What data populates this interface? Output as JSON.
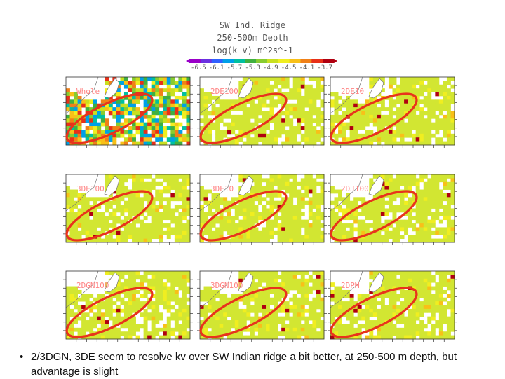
{
  "chart_data": {
    "type": "heatmap",
    "title": "SW Ind. Ridge",
    "subtitle": "250-500m Depth",
    "colorbar_label": "log(k_v) m^2s^-1",
    "colorbar_ticks": [
      "-6.5",
      "-6.1",
      "-5.7",
      "-5.3",
      "-4.9",
      "-4.5",
      "-4.1",
      "-3.7"
    ],
    "colorbar_range": [
      -6.7,
      -3.5
    ],
    "colormap": [
      "#9a00c8",
      "#6a30e0",
      "#3060ff",
      "#00a0e8",
      "#00c0a0",
      "#40b040",
      "#88cc30",
      "#c8e020",
      "#f0ee20",
      "#f8c018",
      "#f08018",
      "#e83018",
      "#b00010"
    ],
    "grid": false,
    "panels": [
      {
        "name": "Whole",
        "data_mix": "varied"
      },
      {
        "name": "2DE100",
        "data_mix": "uniform"
      },
      {
        "name": "2DE10",
        "data_mix": "uniform"
      },
      {
        "name": "3DE100",
        "data_mix": "uniform"
      },
      {
        "name": "3DE10",
        "data_mix": "uniform"
      },
      {
        "name": "2DJ100",
        "data_mix": "uniform"
      },
      {
        "name": "2DGN100",
        "data_mix": "uniform"
      },
      {
        "name": "3DGN100",
        "data_mix": "uniform"
      },
      {
        "name": "2DPM",
        "data_mix": "uniform"
      }
    ],
    "annotation": "red ellipse marks SW Indian Ridge"
  },
  "colors": {
    "ellipse": "#e8331c",
    "background_field": "#d2e632",
    "land_outline": "#777777"
  },
  "bullet": {
    "glyph": "•",
    "text": "2/3DGN, 3DE seem to resolve kv over SW Indian ridge a bit better, at 250-500 m depth, but advantage is slight"
  }
}
